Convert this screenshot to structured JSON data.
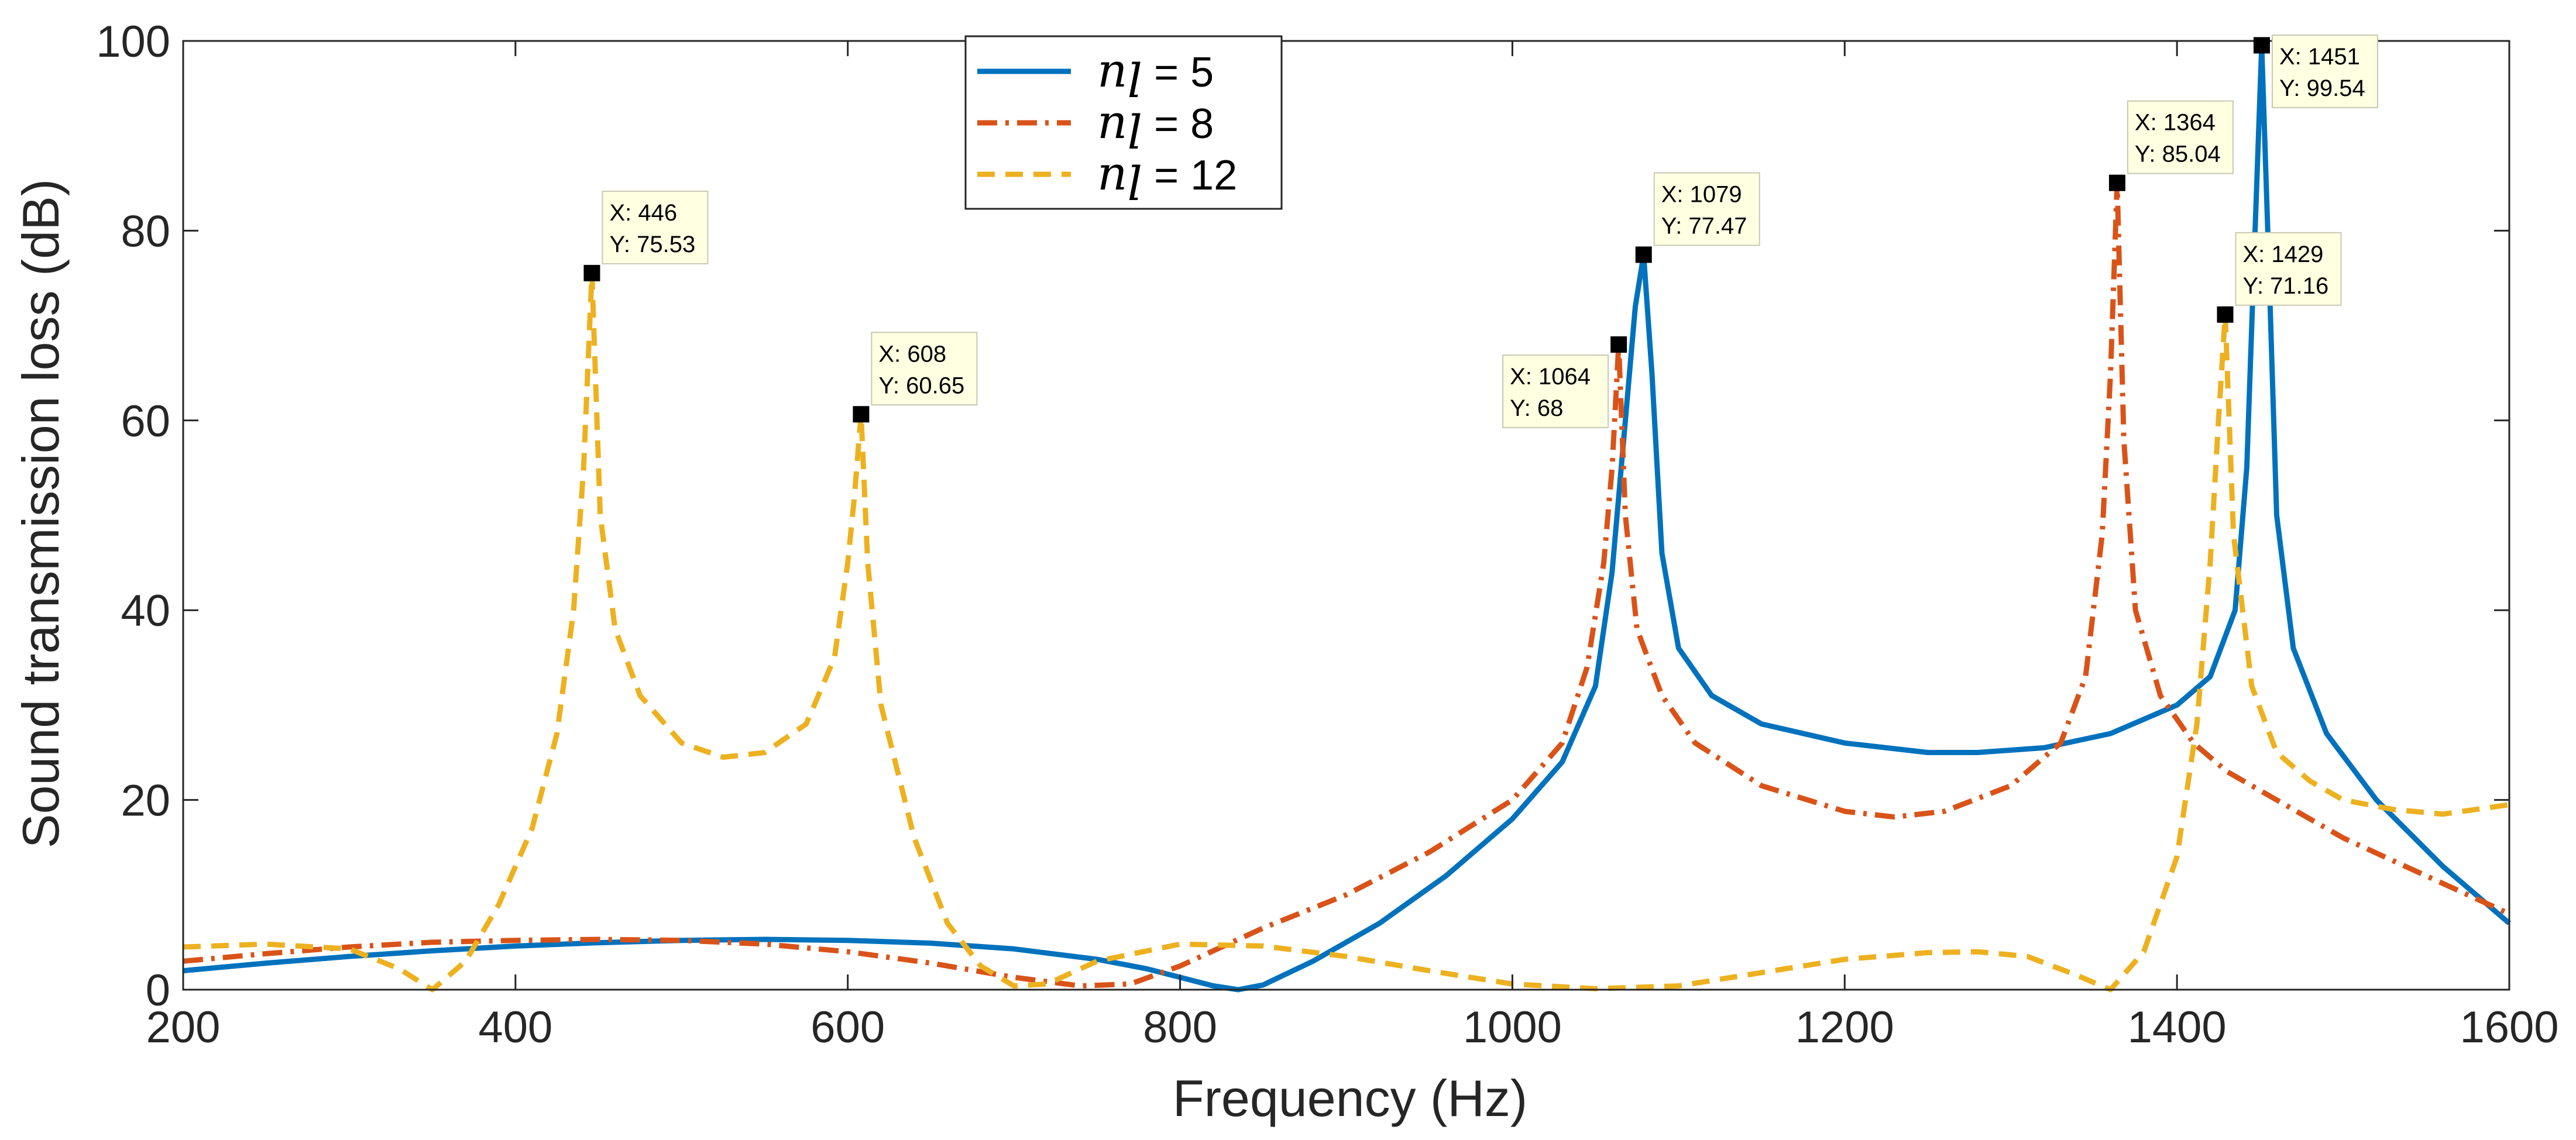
{
  "chart_data": {
    "type": "line",
    "title": "",
    "xlabel": "Frequency (Hz)",
    "ylabel": "Sound transmission loss (dB)",
    "xlim": [
      200,
      1600
    ],
    "ylim": [
      0,
      100
    ],
    "xticks": [
      200,
      400,
      600,
      800,
      1000,
      1200,
      1400,
      1600
    ],
    "yticks": [
      0,
      20,
      40,
      60,
      80,
      100
    ],
    "grid": false,
    "legend_position": "top-center",
    "series": [
      {
        "name": "n_l = 5",
        "legend_symbol": "n",
        "legend_subscript": "l",
        "legend_value": "= 5",
        "color": "#0072bd",
        "style": "solid",
        "points": [
          [
            200,
            2
          ],
          [
            250,
            2.8
          ],
          [
            300,
            3.5
          ],
          [
            350,
            4.1
          ],
          [
            400,
            4.6
          ],
          [
            450,
            4.95
          ],
          [
            500,
            5.2
          ],
          [
            550,
            5.3
          ],
          [
            600,
            5.2
          ],
          [
            650,
            4.9
          ],
          [
            700,
            4.3
          ],
          [
            750,
            3.2
          ],
          [
            780,
            2.2
          ],
          [
            800,
            1.3
          ],
          [
            820,
            0.4
          ],
          [
            835,
            0.0
          ],
          [
            850,
            0.5
          ],
          [
            880,
            3.0
          ],
          [
            920,
            7
          ],
          [
            960,
            12
          ],
          [
            1000,
            18
          ],
          [
            1030,
            24
          ],
          [
            1050,
            32
          ],
          [
            1060,
            44
          ],
          [
            1068,
            60
          ],
          [
            1074,
            72
          ],
          [
            1079,
            77.47
          ],
          [
            1084,
            65
          ],
          [
            1090,
            46
          ],
          [
            1100,
            36
          ],
          [
            1120,
            31
          ],
          [
            1150,
            28
          ],
          [
            1200,
            26
          ],
          [
            1250,
            25
          ],
          [
            1280,
            25
          ],
          [
            1320,
            25.5
          ],
          [
            1360,
            27
          ],
          [
            1400,
            30
          ],
          [
            1420,
            33
          ],
          [
            1435,
            40
          ],
          [
            1442,
            55
          ],
          [
            1447,
            80
          ],
          [
            1451,
            99.54
          ],
          [
            1455,
            78
          ],
          [
            1460,
            50
          ],
          [
            1470,
            36
          ],
          [
            1490,
            27
          ],
          [
            1520,
            20
          ],
          [
            1560,
            13
          ],
          [
            1600,
            7
          ]
        ]
      },
      {
        "name": "n_l = 8",
        "legend_symbol": "n",
        "legend_subscript": "l",
        "legend_value": "= 8",
        "color": "#d95319",
        "style": "dashdot",
        "points": [
          [
            200,
            3
          ],
          [
            250,
            3.8
          ],
          [
            300,
            4.5
          ],
          [
            350,
            5
          ],
          [
            400,
            5.2
          ],
          [
            450,
            5.3
          ],
          [
            500,
            5.2
          ],
          [
            550,
            4.8
          ],
          [
            600,
            4.0
          ],
          [
            650,
            2.8
          ],
          [
            700,
            1.3
          ],
          [
            740,
            0.4
          ],
          [
            770,
            0.6
          ],
          [
            800,
            2.5
          ],
          [
            850,
            6.5
          ],
          [
            900,
            10
          ],
          [
            950,
            14.5
          ],
          [
            1000,
            20
          ],
          [
            1030,
            26
          ],
          [
            1045,
            34
          ],
          [
            1055,
            45
          ],
          [
            1060,
            55
          ],
          [
            1064,
            68
          ],
          [
            1068,
            50
          ],
          [
            1075,
            38
          ],
          [
            1090,
            31
          ],
          [
            1110,
            26
          ],
          [
            1150,
            21.5
          ],
          [
            1200,
            18.8
          ],
          [
            1230,
            18.2
          ],
          [
            1260,
            18.8
          ],
          [
            1300,
            21.5
          ],
          [
            1330,
            26
          ],
          [
            1345,
            33
          ],
          [
            1355,
            48
          ],
          [
            1360,
            65
          ],
          [
            1364,
            85.04
          ],
          [
            1368,
            58
          ],
          [
            1375,
            40
          ],
          [
            1390,
            31
          ],
          [
            1410,
            26
          ],
          [
            1430,
            23
          ],
          [
            1460,
            20
          ],
          [
            1500,
            16
          ],
          [
            1550,
            12
          ],
          [
            1600,
            8
          ]
        ]
      },
      {
        "name": "n_l = 12",
        "legend_symbol": "n",
        "legend_subscript": "l",
        "legend_value": "= 12",
        "color": "#edb120",
        "style": "dashed",
        "points": [
          [
            200,
            4.5
          ],
          [
            250,
            4.8
          ],
          [
            300,
            4.3
          ],
          [
            330,
            2.2
          ],
          [
            350,
            0
          ],
          [
            370,
            3
          ],
          [
            390,
            9
          ],
          [
            410,
            17
          ],
          [
            425,
            27
          ],
          [
            435,
            40
          ],
          [
            441,
            55
          ],
          [
            446,
            75.53
          ],
          [
            451,
            50
          ],
          [
            460,
            38
          ],
          [
            475,
            31
          ],
          [
            500,
            26
          ],
          [
            525,
            24.5
          ],
          [
            550,
            25
          ],
          [
            575,
            28
          ],
          [
            592,
            35
          ],
          [
            600,
            45
          ],
          [
            604,
            52
          ],
          [
            608,
            60.65
          ],
          [
            612,
            45
          ],
          [
            620,
            30
          ],
          [
            640,
            16
          ],
          [
            660,
            7
          ],
          [
            680,
            2.5
          ],
          [
            700,
            0.4
          ],
          [
            720,
            0.6
          ],
          [
            750,
            3
          ],
          [
            800,
            4.8
          ],
          [
            850,
            4.6
          ],
          [
            900,
            3.5
          ],
          [
            950,
            2
          ],
          [
            1000,
            0.6
          ],
          [
            1050,
            0.1
          ],
          [
            1100,
            0.4
          ],
          [
            1150,
            1.8
          ],
          [
            1200,
            3.2
          ],
          [
            1250,
            3.9
          ],
          [
            1280,
            4
          ],
          [
            1310,
            3.5
          ],
          [
            1340,
            1.5
          ],
          [
            1360,
            0
          ],
          [
            1380,
            4
          ],
          [
            1400,
            14
          ],
          [
            1412,
            28
          ],
          [
            1420,
            45
          ],
          [
            1425,
            60
          ],
          [
            1429,
            71.16
          ],
          [
            1434,
            48
          ],
          [
            1445,
            32
          ],
          [
            1460,
            25
          ],
          [
            1480,
            22
          ],
          [
            1500,
            20
          ],
          [
            1530,
            19
          ],
          [
            1560,
            18.5
          ],
          [
            1600,
            19.5
          ]
        ]
      }
    ],
    "datatips": [
      {
        "x_label": "X: 446",
        "y_label": "Y: 75.53",
        "x": 446,
        "y": 75.53,
        "side": "right"
      },
      {
        "x_label": "X: 608",
        "y_label": "Y: 60.65",
        "x": 608,
        "y": 60.65,
        "side": "right"
      },
      {
        "x_label": "X: 1064",
        "y_label": "Y: 68",
        "x": 1064,
        "y": 68,
        "side": "left"
      },
      {
        "x_label": "X: 1079",
        "y_label": "Y: 77.47",
        "x": 1079,
        "y": 77.47,
        "side": "right"
      },
      {
        "x_label": "X: 1364",
        "y_label": "Y: 85.04",
        "x": 1364,
        "y": 85.04,
        "side": "right"
      },
      {
        "x_label": "X: 1451",
        "y_label": "Y: 99.54",
        "x": 1451,
        "y": 99.54,
        "side": "right"
      },
      {
        "x_label": "X: 1429",
        "y_label": "Y: 71.16",
        "x": 1429,
        "y": 71.16,
        "side": "right"
      }
    ]
  }
}
